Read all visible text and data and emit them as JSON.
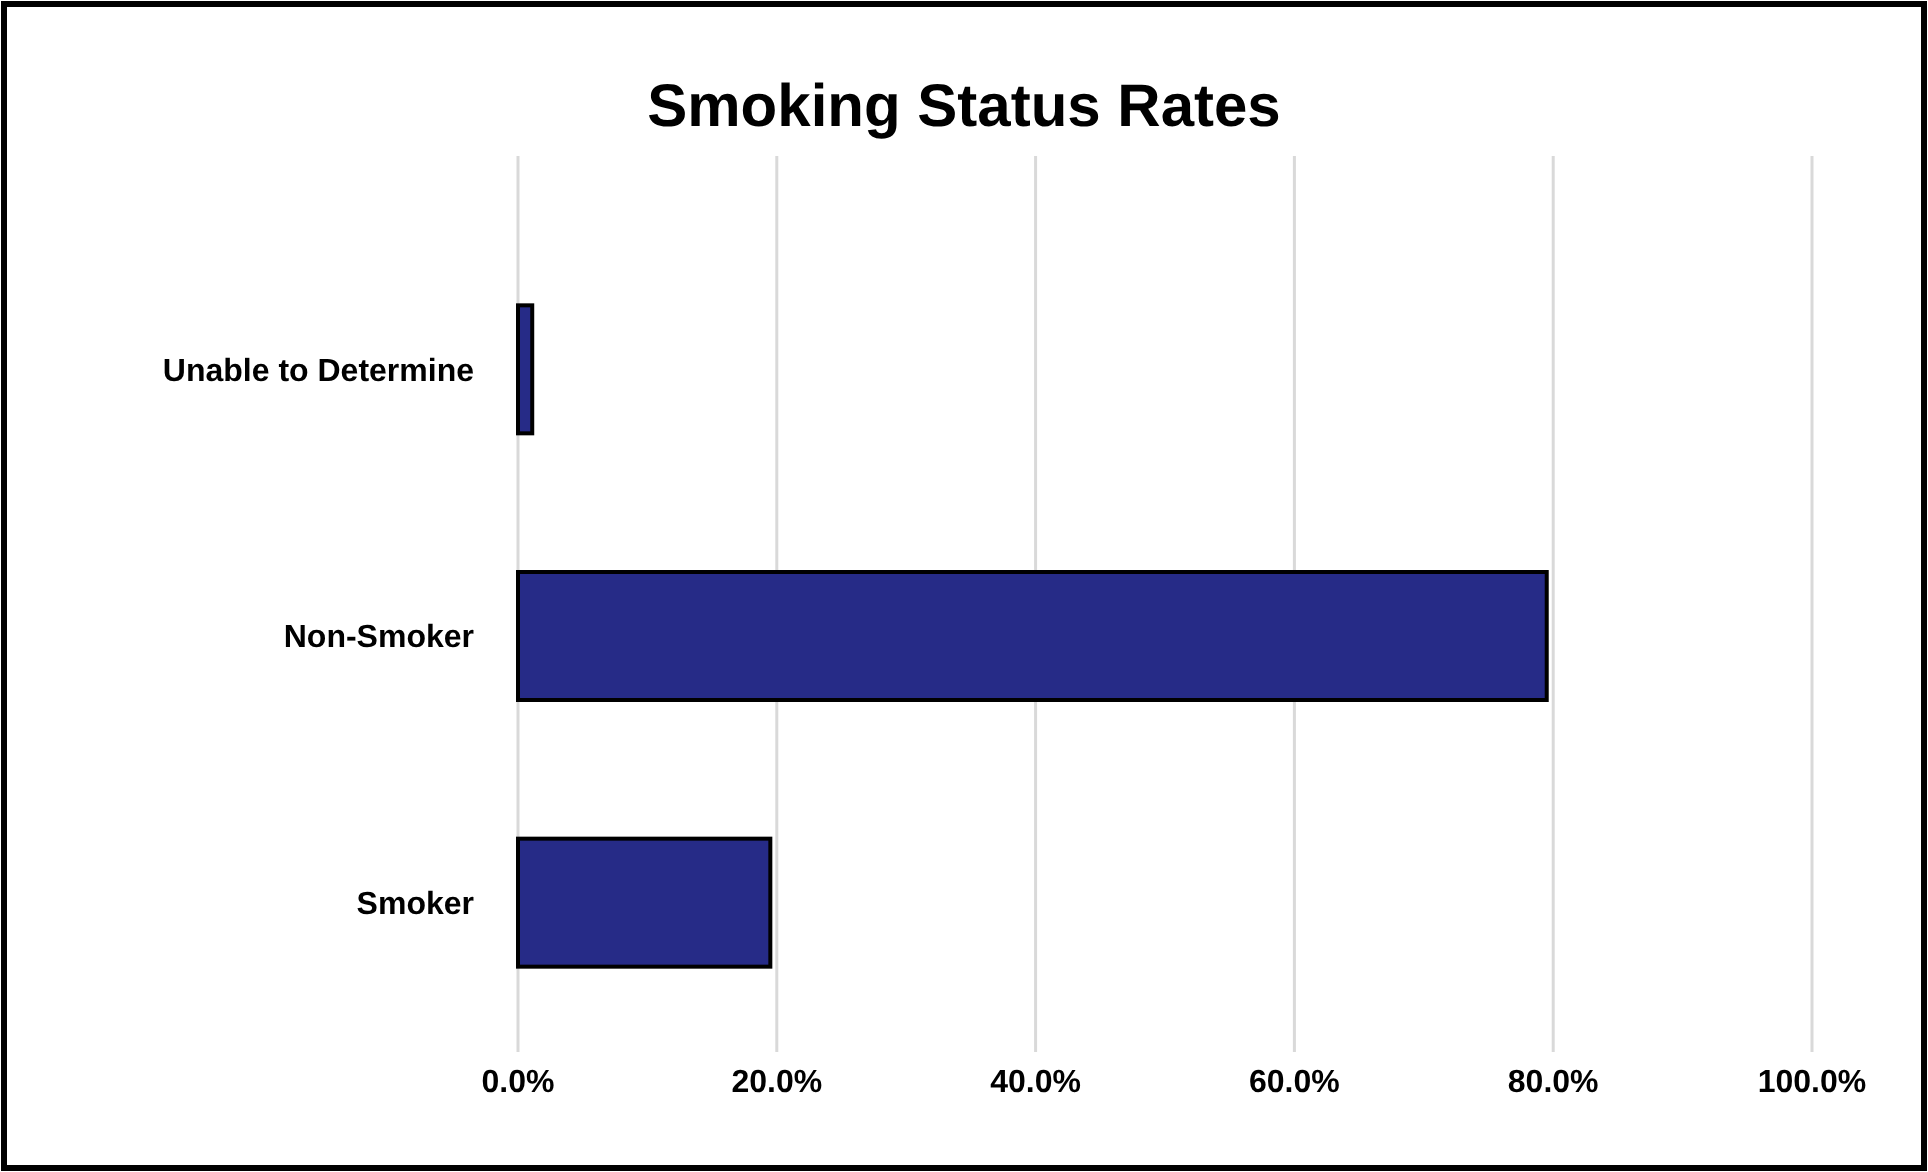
{
  "chart_data": {
    "type": "bar",
    "orientation": "horizontal",
    "title": "Smoking Status Rates",
    "categories": [
      "Unable to Determine",
      "Non-Smoker",
      "Smoker"
    ],
    "values": [
      1.1,
      79.5,
      19.5
    ],
    "color": "#262b87",
    "xlim": [
      0,
      100
    ],
    "xticks": [
      {
        "value": 0,
        "label": "0.0%"
      },
      {
        "value": 20,
        "label": "20.0%"
      },
      {
        "value": 40,
        "label": "40.0%"
      },
      {
        "value": 60,
        "label": "60.0%"
      },
      {
        "value": 80,
        "label": "80.0%"
      },
      {
        "value": 100,
        "label": "100.0%"
      }
    ],
    "grid": "x"
  }
}
